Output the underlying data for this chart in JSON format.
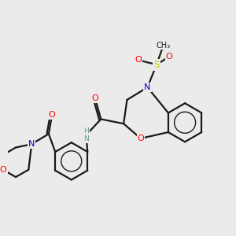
{
  "bg_color": "#ebebeb",
  "bond_color": "#1a1a1a",
  "atom_colors": {
    "O": "#ff0000",
    "N": "#0000cc",
    "S": "#cccc00",
    "H": "#5a9a9a",
    "C": "#1a1a1a"
  }
}
